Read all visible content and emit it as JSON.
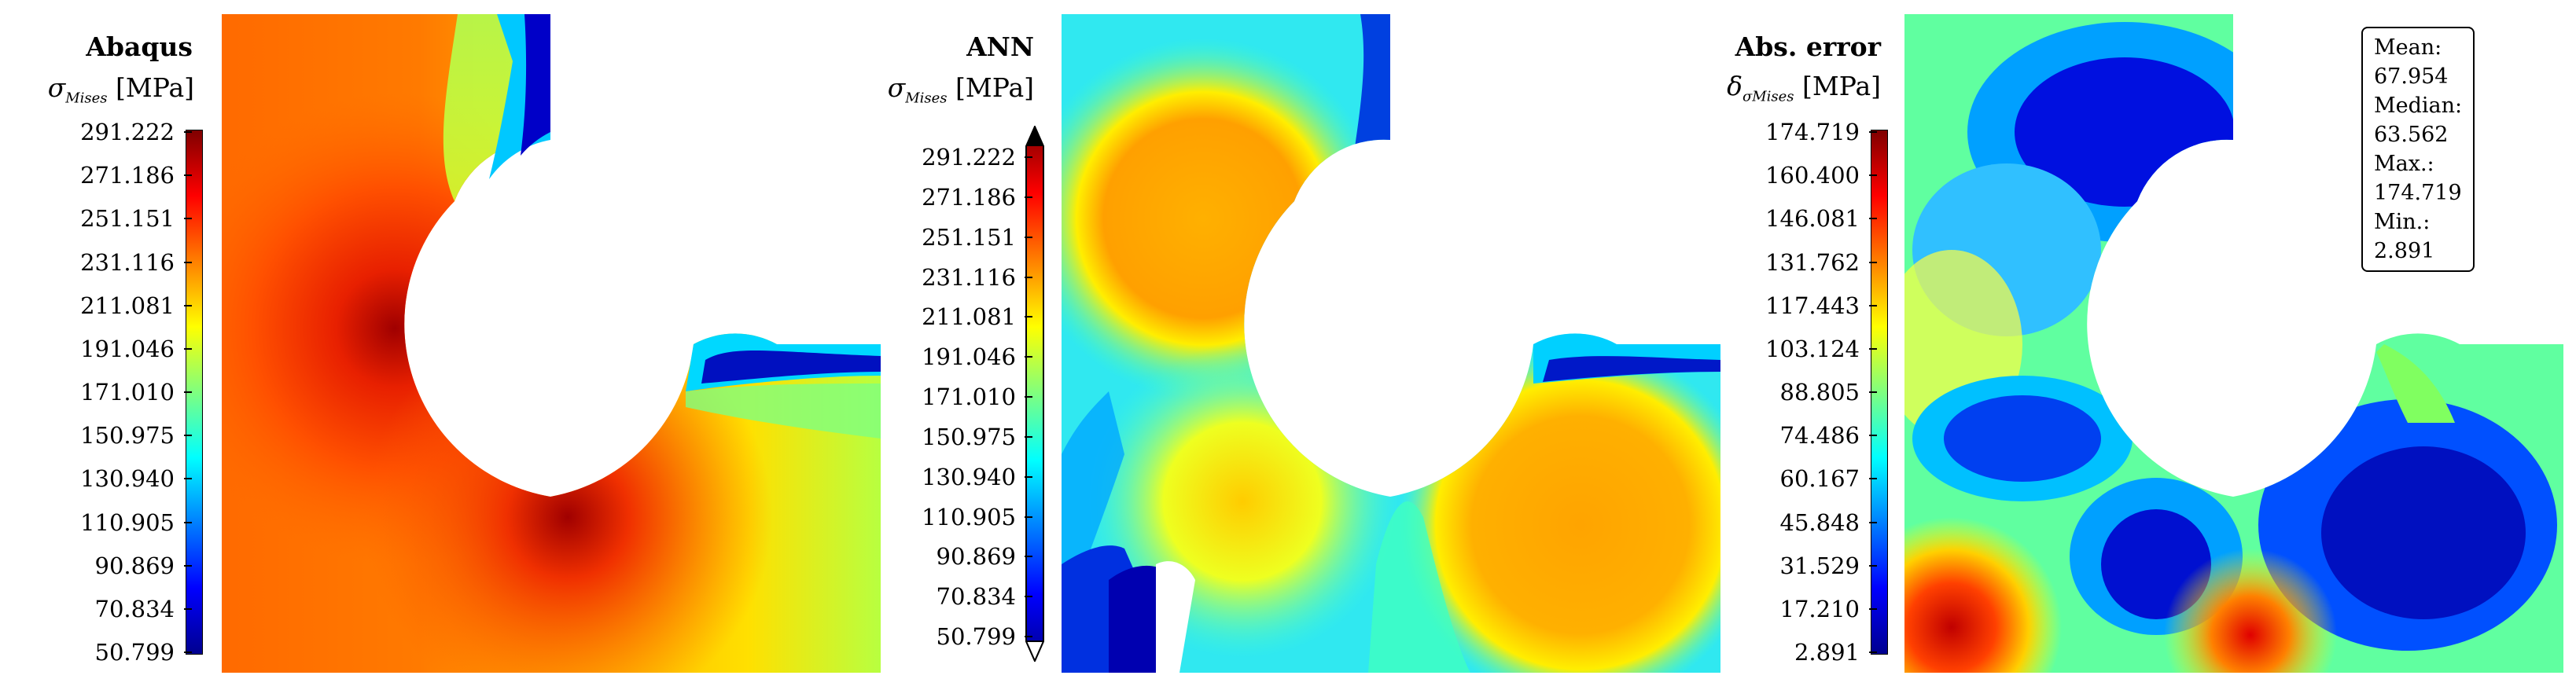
{
  "chart_data": [
    {
      "type": "heatmap",
      "title": "Abaqus",
      "colorbar_label": "σMises [MPa]",
      "colorbar_ticks": [
        "291.222",
        "271.186",
        "251.151",
        "231.116",
        "211.081",
        "191.046",
        "171.010",
        "150.975",
        "130.940",
        "110.905",
        "90.869",
        "70.834",
        "50.799"
      ],
      "range": [
        50.799,
        291.222
      ],
      "colormap": "jet"
    },
    {
      "type": "heatmap",
      "title": "ANN",
      "colorbar_label": "σMises [MPa]",
      "colorbar_ticks": [
        "291.222",
        "271.186",
        "251.151",
        "231.116",
        "211.081",
        "191.046",
        "171.010",
        "150.975",
        "130.940",
        "110.905",
        "90.869",
        "70.834",
        "50.799"
      ],
      "range": [
        50.799,
        291.222
      ],
      "colormap": "jet",
      "colorbar_extend": "both"
    },
    {
      "type": "heatmap",
      "title": "Abs. error",
      "colorbar_label": "δσMises [MPa]",
      "colorbar_ticks": [
        "174.719",
        "160.400",
        "146.081",
        "131.762",
        "117.443",
        "103.124",
        "88.805",
        "74.486",
        "60.167",
        "45.848",
        "31.529",
        "17.210",
        "2.891"
      ],
      "range": [
        2.891,
        174.719
      ],
      "colormap": "jet",
      "stats": {
        "mean": "Mean: 67.954",
        "median": "Median: 63.562",
        "max": "Max.: 174.719",
        "min": "Min.: 2.891"
      }
    }
  ],
  "panels": [
    {
      "title": "Abaqus",
      "sym": "σ",
      "sub": "Mises",
      "unit": " [MPa]"
    },
    {
      "title": "ANN",
      "sym": "σ",
      "sub": "Mises",
      "unit": " [MPa]"
    },
    {
      "title": "Abs. error",
      "sym": "δ",
      "sub2": "σ",
      "sub": "Mises",
      "unit": " [MPa]"
    }
  ],
  "colors": {
    "jet": [
      "#00008f",
      "#0000ff",
      "#007fff",
      "#00ffff",
      "#7fff7f",
      "#ffff00",
      "#ff7f00",
      "#ff0000",
      "#7f0000"
    ]
  }
}
